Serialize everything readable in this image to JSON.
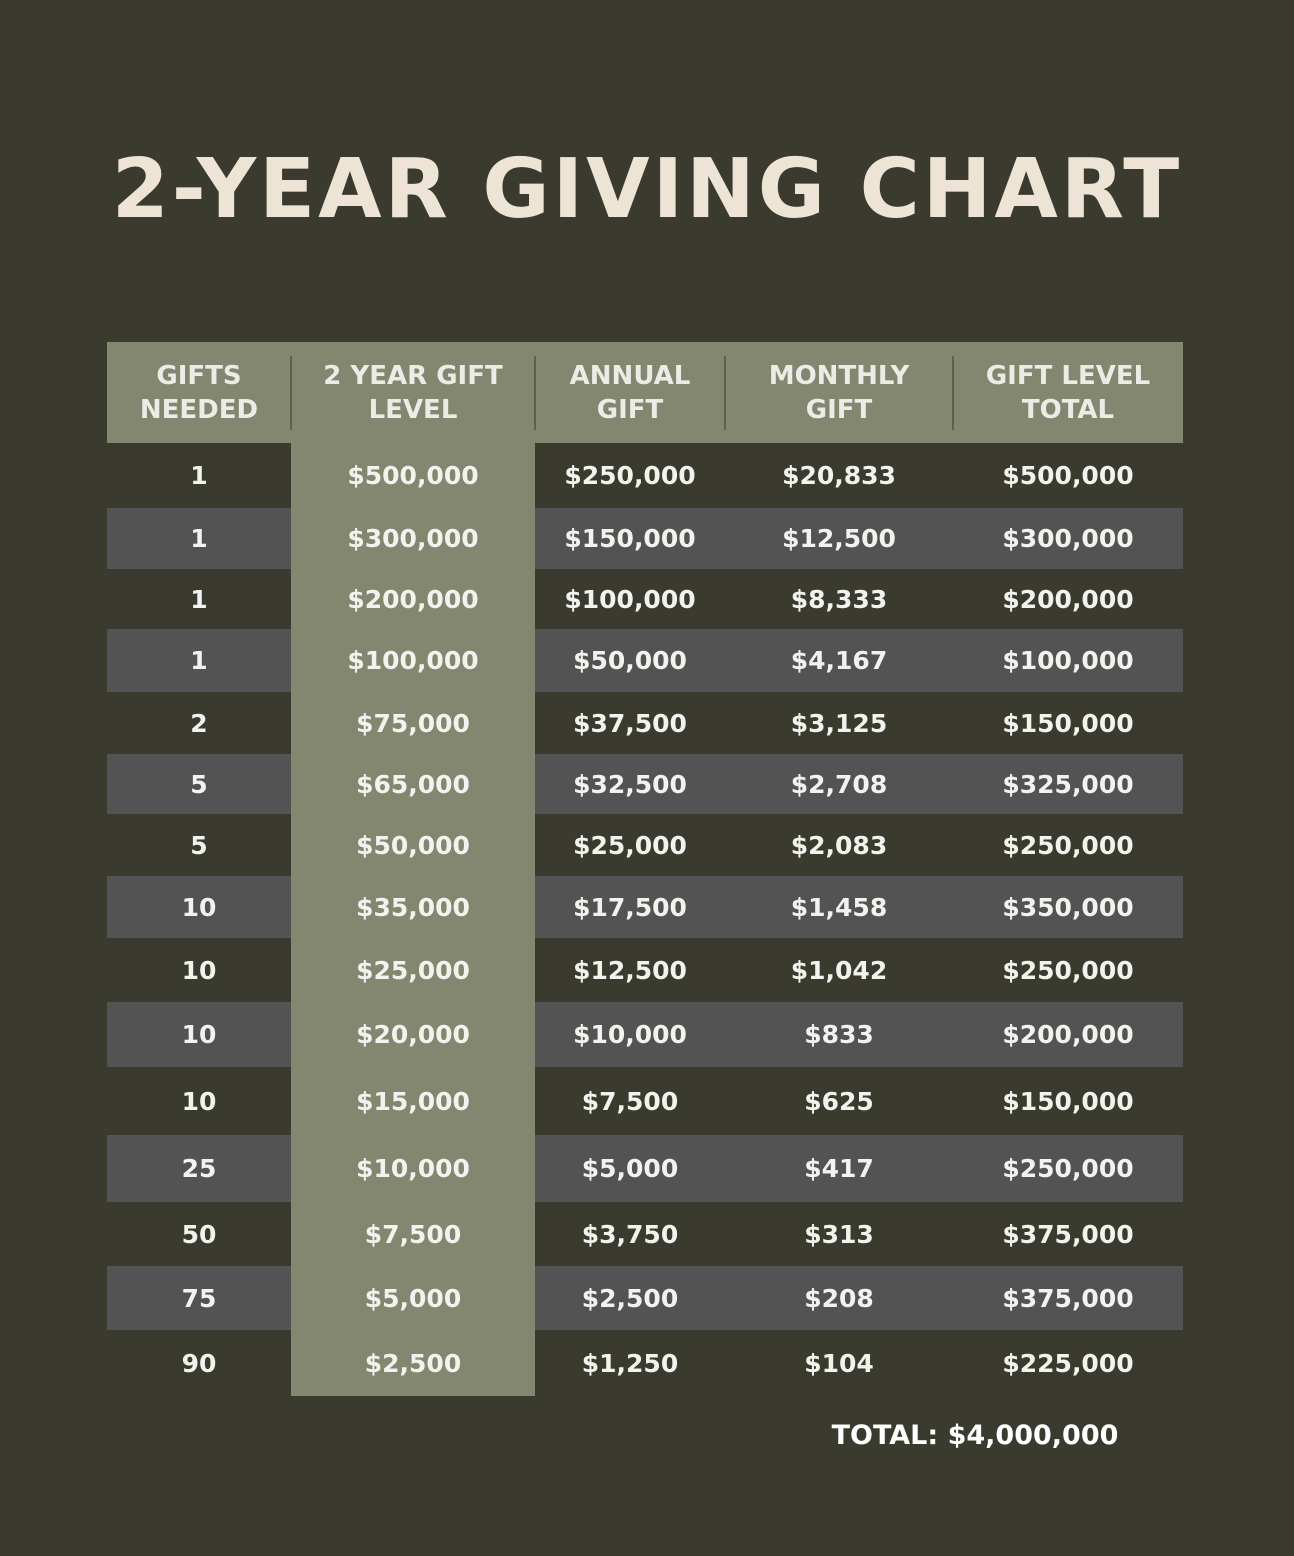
{
  "page": {
    "title": "2-YEAR GIVING CHART",
    "grand_total": "TOTAL: $4,000,000"
  },
  "colors": {
    "background": "#3a3a2e",
    "accent": "#838770",
    "stripe": "#535353",
    "title": "#eee4d6"
  },
  "chart_data": {
    "type": "table",
    "title": "2-YEAR GIVING CHART",
    "columns": [
      "GIFTS\nNEEDED",
      "2 YEAR GIFT\nLEVEL",
      "ANNUAL\nGIFT",
      "MONTHLY\nGIFT",
      "GIFT LEVEL\nTOTAL"
    ],
    "rows": [
      [
        "1",
        "$500,000",
        "$250,000",
        "$20,833",
        "$500,000"
      ],
      [
        "1",
        "$300,000",
        "$150,000",
        "$12,500",
        "$300,000"
      ],
      [
        "1",
        "$200,000",
        "$100,000",
        "$8,333",
        "$200,000"
      ],
      [
        "1",
        "$100,000",
        "$50,000",
        "$4,167",
        "$100,000"
      ],
      [
        "2",
        "$75,000",
        "$37,500",
        "$3,125",
        "$150,000"
      ],
      [
        "5",
        "$65,000",
        "$32,500",
        "$2,708",
        "$325,000"
      ],
      [
        "5",
        "$50,000",
        "$25,000",
        "$2,083",
        "$250,000"
      ],
      [
        "10",
        "$35,000",
        "$17,500",
        "$1,458",
        "$350,000"
      ],
      [
        "10",
        "$25,000",
        "$12,500",
        "$1,042",
        "$250,000"
      ],
      [
        "10",
        "$20,000",
        "$10,000",
        "$833",
        "$200,000"
      ],
      [
        "10",
        "$15,000",
        "$7,500",
        "$625",
        "$150,000"
      ],
      [
        "25",
        "$10,000",
        "$5,000",
        "$417",
        "$250,000"
      ],
      [
        "50",
        "$7,500",
        "$3,750",
        "$313",
        "$375,000"
      ],
      [
        "75",
        "$5,000",
        "$2,500",
        "$208",
        "$375,000"
      ],
      [
        "90",
        "$2,500",
        "$1,250",
        "$104",
        "$225,000"
      ]
    ],
    "total": "TOTAL: $4,000,000"
  }
}
